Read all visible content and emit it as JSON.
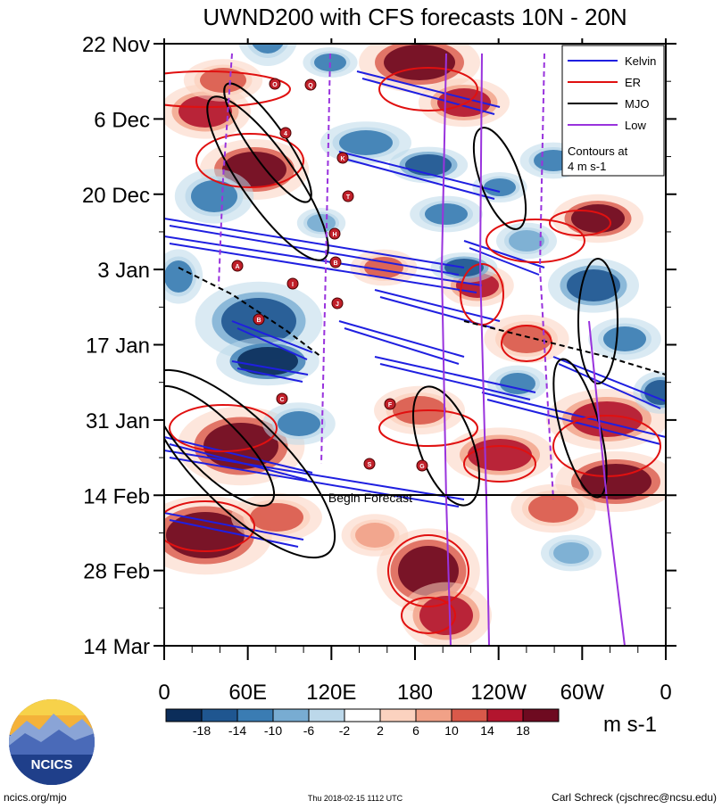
{
  "chart_data": {
    "type": "heatmap",
    "title": "UWND200 with CFS forecasts  10N - 20N",
    "x_tick_labels": [
      "0",
      "60E",
      "120E",
      "180",
      "120W",
      "60W",
      "0"
    ],
    "y_tick_labels": [
      "22 Nov",
      "6 Dec",
      "20 Dec",
      "3 Jan",
      "17 Jan",
      "31 Jan",
      "14 Feb",
      "28 Feb",
      "14 Mar"
    ],
    "colorbar": {
      "levels": [
        -18,
        -14,
        -10,
        -6,
        -2,
        2,
        6,
        10,
        14,
        18
      ],
      "colors": [
        "#0b2d5a",
        "#1f5690",
        "#3a7cb3",
        "#78acd2",
        "#bcd8ea",
        "#ffffff",
        "#fbd2bf",
        "#f1a187",
        "#d9594a",
        "#b3152e",
        "#6e0a20"
      ],
      "units": "m s-1"
    },
    "legend": {
      "placement": "top-right",
      "entries": [
        {
          "name": "Kelvin",
          "color": "#1f1fe0"
        },
        {
          "name": "ER",
          "color": "#e01010"
        },
        {
          "name": "MJO",
          "color": "#000000"
        },
        {
          "name": "Low",
          "color": "#9933dd"
        }
      ],
      "note_line1": "Contours at",
      "note_line2": "4 m s-1"
    },
    "forecast_label": "Begin Forecast",
    "storm_labels": [
      "O",
      "Q",
      "4",
      "K",
      "T",
      "H",
      "B",
      "A",
      "I",
      "J",
      "B",
      "C",
      "F",
      "S",
      "G"
    ]
  },
  "footer": {
    "left": "ncics.org/mjo",
    "center": "Thu 2018-02-15 1112 UTC",
    "right": "Carl Schreck (cjschrec@ncsu.edu)",
    "logo_text": "NCICS"
  }
}
